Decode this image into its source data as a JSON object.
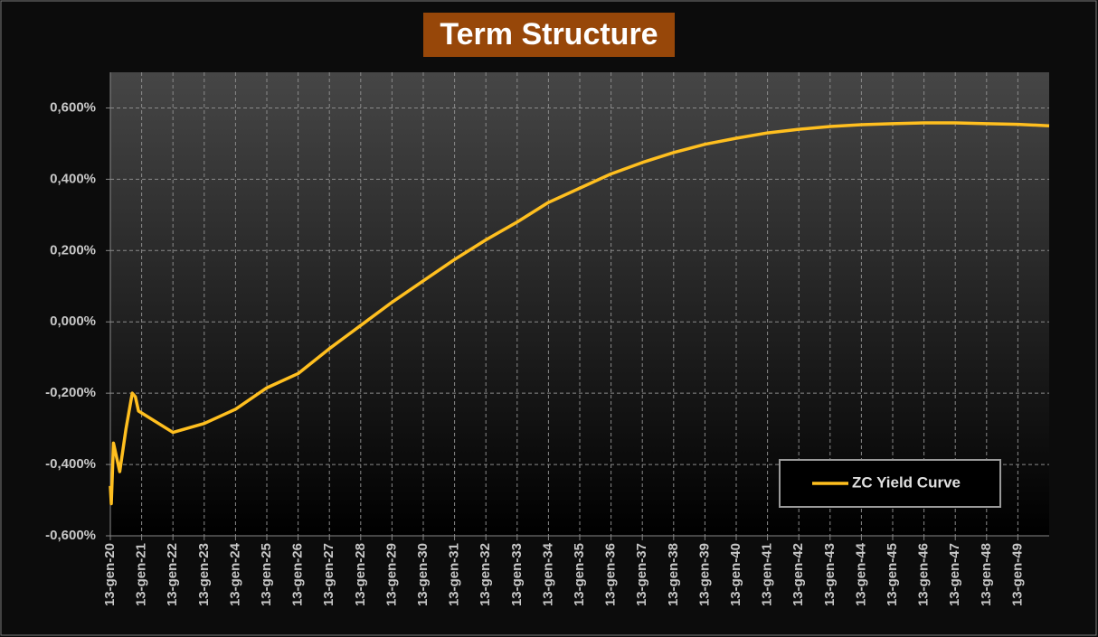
{
  "chart_data": {
    "type": "line",
    "title": "Term Structure",
    "x": [
      2020.0,
      2020.03,
      2020.1,
      2020.3,
      2020.5,
      2020.7,
      2020.8,
      2020.9,
      2022,
      2023,
      2024,
      2025,
      2026,
      2027,
      2028,
      2029,
      2030,
      2031,
      2032,
      2033,
      2034,
      2035,
      2036,
      2037,
      2038,
      2039,
      2040,
      2041,
      2042,
      2043,
      2044,
      2045,
      2046,
      2047,
      2048,
      2049,
      2050
    ],
    "series": [
      {
        "name": "ZC Yield Curve",
        "color": "#ffbf1f",
        "values": [
          -0.46,
          -0.51,
          -0.34,
          -0.42,
          -0.3,
          -0.2,
          -0.21,
          -0.25,
          -0.31,
          -0.285,
          -0.245,
          -0.185,
          -0.145,
          -0.075,
          -0.01,
          0.055,
          0.115,
          0.175,
          0.23,
          0.28,
          0.335,
          0.375,
          0.415,
          0.447,
          0.475,
          0.498,
          0.515,
          0.53,
          0.54,
          0.548,
          0.553,
          0.556,
          0.558,
          0.558,
          0.556,
          0.554,
          0.55
        ]
      }
    ],
    "xlim": [
      2020,
      2050
    ],
    "xticks": [
      {
        "value": 2020,
        "label": "13-gen-20"
      },
      {
        "value": 2021,
        "label": "13-gen-21"
      },
      {
        "value": 2022,
        "label": "13-gen-22"
      },
      {
        "value": 2023,
        "label": "13-gen-23"
      },
      {
        "value": 2024,
        "label": "13-gen-24"
      },
      {
        "value": 2025,
        "label": "13-gen-25"
      },
      {
        "value": 2026,
        "label": "13-gen-26"
      },
      {
        "value": 2027,
        "label": "13-gen-27"
      },
      {
        "value": 2028,
        "label": "13-gen-28"
      },
      {
        "value": 2029,
        "label": "13-gen-29"
      },
      {
        "value": 2030,
        "label": "13-gen-30"
      },
      {
        "value": 2031,
        "label": "13-gen-31"
      },
      {
        "value": 2032,
        "label": "13-gen-32"
      },
      {
        "value": 2033,
        "label": "13-gen-33"
      },
      {
        "value": 2034,
        "label": "13-gen-34"
      },
      {
        "value": 2035,
        "label": "13-gen-35"
      },
      {
        "value": 2036,
        "label": "13-gen-36"
      },
      {
        "value": 2037,
        "label": "13-gen-37"
      },
      {
        "value": 2038,
        "label": "13-gen-38"
      },
      {
        "value": 2039,
        "label": "13-gen-39"
      },
      {
        "value": 2040,
        "label": "13-gen-40"
      },
      {
        "value": 2041,
        "label": "13-gen-41"
      },
      {
        "value": 2042,
        "label": "13-gen-42"
      },
      {
        "value": 2043,
        "label": "13-gen-43"
      },
      {
        "value": 2044,
        "label": "13-gen-44"
      },
      {
        "value": 2045,
        "label": "13-gen-45"
      },
      {
        "value": 2046,
        "label": "13-gen-46"
      },
      {
        "value": 2047,
        "label": "13-gen-47"
      },
      {
        "value": 2048,
        "label": "13-gen-48"
      },
      {
        "value": 2049,
        "label": "13-gen-49"
      }
    ],
    "ylim": [
      -0.6,
      0.7
    ],
    "yticks": [
      {
        "value": -0.6,
        "label": "-0,600%"
      },
      {
        "value": -0.4,
        "label": "-0,400%"
      },
      {
        "value": -0.2,
        "label": "-0,200%"
      },
      {
        "value": 0,
        "label": "0,000%"
      },
      {
        "value": 0.2,
        "label": "0,200%"
      },
      {
        "value": 0.4,
        "label": "0,400%"
      },
      {
        "value": 0.6,
        "label": "0,600%"
      }
    ],
    "grid": true,
    "legend": "lower right"
  }
}
